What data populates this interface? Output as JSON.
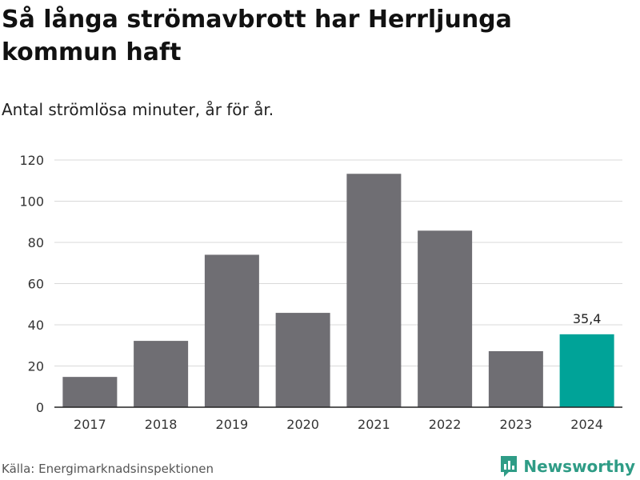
{
  "title": "Så långa strömavbrott har Herrljunga kommun haft",
  "subtitle": "Antal strömlösa minuter, år för år.",
  "source": "Källa: Energimarknadsinspektionen",
  "brand": {
    "name": "Newsworthy",
    "icon": "newsworthy-logo-icon",
    "color": "#2f9c86"
  },
  "colors": {
    "bar": "#6f6e73",
    "highlight": "#00a398",
    "grid": "#d9d9d9",
    "axis": "#222222"
  },
  "chart_data": {
    "type": "bar",
    "title": "Så långa strömavbrott har Herrljunga kommun haft",
    "subtitle": "Antal strömlösa minuter, år för år.",
    "xlabel": "",
    "ylabel": "",
    "categories": [
      "2017",
      "2018",
      "2019",
      "2020",
      "2021",
      "2022",
      "2023",
      "2024"
    ],
    "values": [
      14.7,
      32.2,
      74.0,
      45.8,
      113.3,
      85.7,
      27.2,
      35.4
    ],
    "ylim": [
      0,
      120
    ],
    "yticks": [
      0,
      20,
      40,
      60,
      80,
      100,
      120
    ],
    "grid": true,
    "highlight_index": 7,
    "data_labels": [
      {
        "index": 7,
        "text": "35,4"
      }
    ]
  }
}
